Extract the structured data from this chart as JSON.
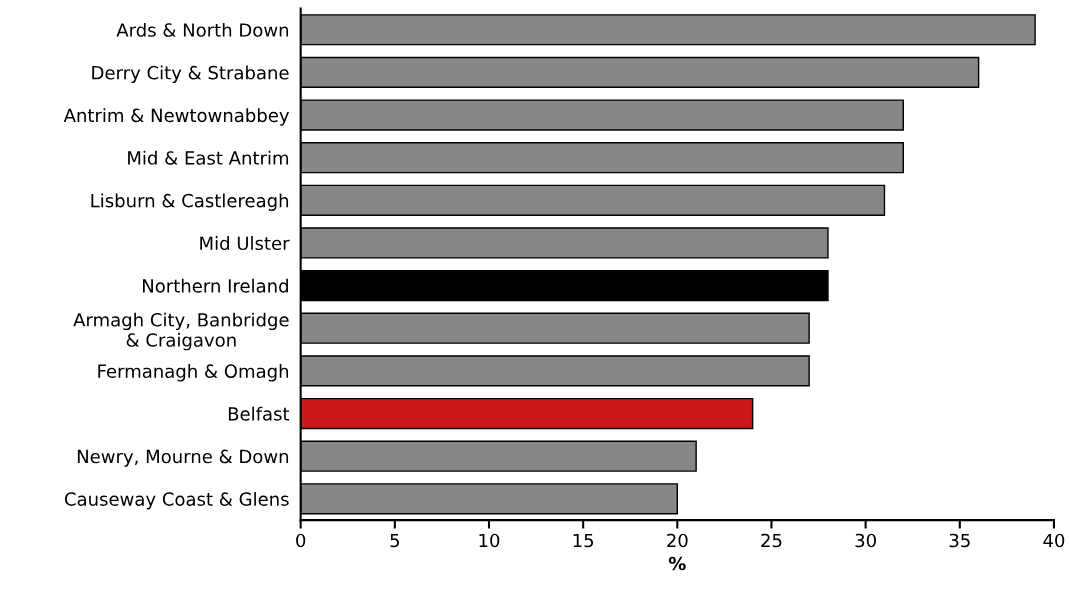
{
  "chart_data": {
    "type": "bar",
    "orientation": "horizontal",
    "xlabel": "%",
    "categories": [
      "Ards & North Down",
      "Derry City & Strabane",
      "Antrim & Newtownabbey",
      "Mid & East Antrim",
      "Lisburn & Castlereagh",
      "Mid Ulster",
      "Northern Ireland",
      "Armagh City, Banbridge\n& Craigavon",
      "Fermanagh & Omagh",
      "Belfast",
      "Newry, Mourne & Down",
      "Causeway Coast & Glens"
    ],
    "values": [
      39,
      36,
      32,
      32,
      31,
      28,
      28,
      27,
      27,
      24,
      21,
      20
    ],
    "colors": [
      "#878787",
      "#878787",
      "#878787",
      "#878787",
      "#878787",
      "#878787",
      "#000000",
      "#878787",
      "#878787",
      "#cc181b",
      "#878787",
      "#878787"
    ],
    "xlim": [
      0,
      40
    ],
    "xticks": [
      0,
      5,
      10,
      15,
      20,
      25,
      30,
      35,
      40
    ],
    "grid": false
  }
}
